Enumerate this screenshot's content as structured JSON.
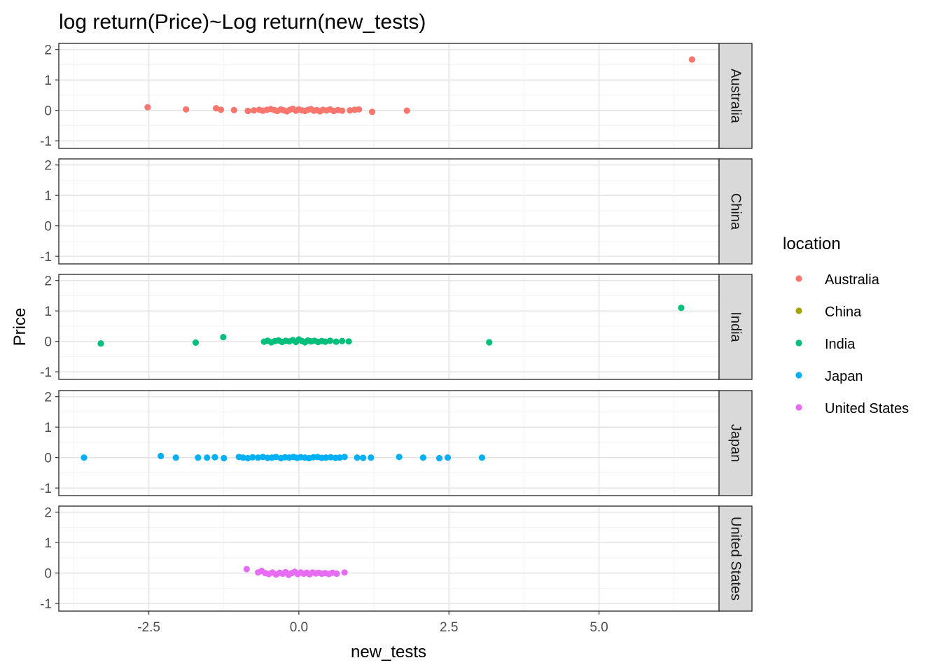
{
  "chart_data": {
    "type": "scatter",
    "title": "log return(Price)~Log return(new_tests)",
    "xlabel": "new_tests",
    "ylabel": "Price",
    "xlim": [
      -4.0,
      7.0
    ],
    "ylim": [
      -1.25,
      2.2
    ],
    "x_ticks": [
      -2.5,
      0.0,
      2.5,
      5.0
    ],
    "x_tick_labels": [
      "-2.5",
      "0.0",
      "2.5",
      "5.0"
    ],
    "y_ticks": [
      -1,
      0,
      1,
      2
    ],
    "y_tick_labels": [
      "-1",
      "0",
      "1",
      "2"
    ],
    "grid": true,
    "legend": {
      "title": "location",
      "placement": "right"
    },
    "series": [
      {
        "name": "Australia",
        "color": "#F8766D",
        "points": [
          [
            -2.52,
            0.1
          ],
          [
            -1.88,
            0.03
          ],
          [
            -1.38,
            0.07
          ],
          [
            -1.3,
            0.02
          ],
          [
            -1.08,
            0.01
          ],
          [
            -0.85,
            -0.02
          ],
          [
            -0.75,
            0.0
          ],
          [
            -0.66,
            0.02
          ],
          [
            -0.6,
            -0.01
          ],
          [
            -0.53,
            0.02
          ],
          [
            -0.47,
            0.04
          ],
          [
            -0.41,
            0.01
          ],
          [
            -0.36,
            -0.02
          ],
          [
            -0.3,
            0.03
          ],
          [
            -0.25,
            0.0
          ],
          [
            -0.2,
            -0.03
          ],
          [
            -0.15,
            0.02
          ],
          [
            -0.1,
            0.05
          ],
          [
            -0.05,
            -0.01
          ],
          [
            0.0,
            0.03
          ],
          [
            0.05,
            0.0
          ],
          [
            0.1,
            -0.02
          ],
          [
            0.15,
            0.02
          ],
          [
            0.2,
            0.04
          ],
          [
            0.25,
            -0.01
          ],
          [
            0.3,
            0.01
          ],
          [
            0.35,
            -0.03
          ],
          [
            0.4,
            0.02
          ],
          [
            0.46,
            0.0
          ],
          [
            0.52,
            0.03
          ],
          [
            0.58,
            -0.02
          ],
          [
            0.65,
            0.01
          ],
          [
            0.72,
            -0.01
          ],
          [
            0.85,
            0.0
          ],
          [
            0.93,
            0.02
          ],
          [
            1.0,
            0.03
          ],
          [
            1.22,
            -0.05
          ],
          [
            1.8,
            -0.01
          ],
          [
            6.55,
            1.67
          ]
        ]
      },
      {
        "name": "China",
        "color": "#A3A500",
        "points": []
      },
      {
        "name": "India",
        "color": "#00BF7D",
        "points": [
          [
            -3.3,
            -0.07
          ],
          [
            -1.72,
            -0.04
          ],
          [
            -1.26,
            0.14
          ],
          [
            -0.58,
            -0.01
          ],
          [
            -0.52,
            0.02
          ],
          [
            -0.46,
            -0.03
          ],
          [
            -0.4,
            0.01
          ],
          [
            -0.34,
            0.03
          ],
          [
            -0.28,
            -0.02
          ],
          [
            -0.22,
            0.02
          ],
          [
            -0.16,
            0.0
          ],
          [
            -0.1,
            0.04
          ],
          [
            -0.05,
            -0.02
          ],
          [
            0.0,
            0.06
          ],
          [
            0.05,
            0.01
          ],
          [
            0.1,
            -0.03
          ],
          [
            0.15,
            0.03
          ],
          [
            0.2,
            0.0
          ],
          [
            0.26,
            0.02
          ],
          [
            0.32,
            -0.02
          ],
          [
            0.38,
            0.01
          ],
          [
            0.44,
            -0.01
          ],
          [
            0.52,
            0.02
          ],
          [
            0.62,
            -0.01
          ],
          [
            0.72,
            0.01
          ],
          [
            0.83,
            0.0
          ],
          [
            3.17,
            -0.03
          ],
          [
            6.37,
            1.1
          ]
        ]
      },
      {
        "name": "Japan",
        "color": "#00B0F6",
        "points": [
          [
            -3.58,
            0.0
          ],
          [
            -2.3,
            0.05
          ],
          [
            -2.05,
            0.0
          ],
          [
            -1.68,
            0.0
          ],
          [
            -1.53,
            0.0
          ],
          [
            -1.4,
            0.01
          ],
          [
            -1.25,
            -0.02
          ],
          [
            -1.0,
            0.02
          ],
          [
            -0.93,
            0.0
          ],
          [
            -0.85,
            -0.02
          ],
          [
            -0.77,
            0.01
          ],
          [
            -0.68,
            0.0
          ],
          [
            -0.6,
            0.02
          ],
          [
            -0.52,
            -0.01
          ],
          [
            -0.45,
            0.0
          ],
          [
            -0.38,
            0.02
          ],
          [
            -0.3,
            -0.02
          ],
          [
            -0.23,
            0.01
          ],
          [
            -0.16,
            0.0
          ],
          [
            -0.09,
            0.02
          ],
          [
            -0.03,
            -0.01
          ],
          [
            0.03,
            0.01
          ],
          [
            0.1,
            0.0
          ],
          [
            0.17,
            -0.02
          ],
          [
            0.24,
            0.01
          ],
          [
            0.31,
            0.02
          ],
          [
            0.38,
            -0.01
          ],
          [
            0.45,
            0.0
          ],
          [
            0.53,
            0.01
          ],
          [
            0.61,
            -0.01
          ],
          [
            0.68,
            0.0
          ],
          [
            0.76,
            0.02
          ],
          [
            0.97,
            0.0
          ],
          [
            1.07,
            -0.01
          ],
          [
            1.2,
            0.0
          ],
          [
            1.67,
            0.02
          ],
          [
            2.07,
            0.0
          ],
          [
            2.34,
            -0.02
          ],
          [
            2.48,
            0.0
          ],
          [
            3.05,
            0.0
          ]
        ]
      },
      {
        "name": "United States",
        "color": "#E76BF3",
        "points": [
          [
            -0.87,
            0.13
          ],
          [
            -0.68,
            0.02
          ],
          [
            -0.62,
            0.07
          ],
          [
            -0.56,
            0.0
          ],
          [
            -0.5,
            -0.03
          ],
          [
            -0.44,
            0.02
          ],
          [
            -0.38,
            -0.05
          ],
          [
            -0.32,
            0.01
          ],
          [
            -0.27,
            -0.02
          ],
          [
            -0.22,
            0.03
          ],
          [
            -0.17,
            -0.06
          ],
          [
            -0.12,
            0.0
          ],
          [
            -0.07,
            0.04
          ],
          [
            -0.02,
            -0.03
          ],
          [
            0.03,
            0.02
          ],
          [
            0.08,
            -0.02
          ],
          [
            0.13,
            0.01
          ],
          [
            0.18,
            -0.04
          ],
          [
            0.23,
            0.02
          ],
          [
            0.28,
            -0.01
          ],
          [
            0.33,
            0.01
          ],
          [
            0.38,
            -0.02
          ],
          [
            0.44,
            0.0
          ],
          [
            0.5,
            -0.03
          ],
          [
            0.56,
            0.01
          ],
          [
            0.63,
            -0.02
          ],
          [
            0.76,
            0.02
          ]
        ]
      }
    ]
  }
}
